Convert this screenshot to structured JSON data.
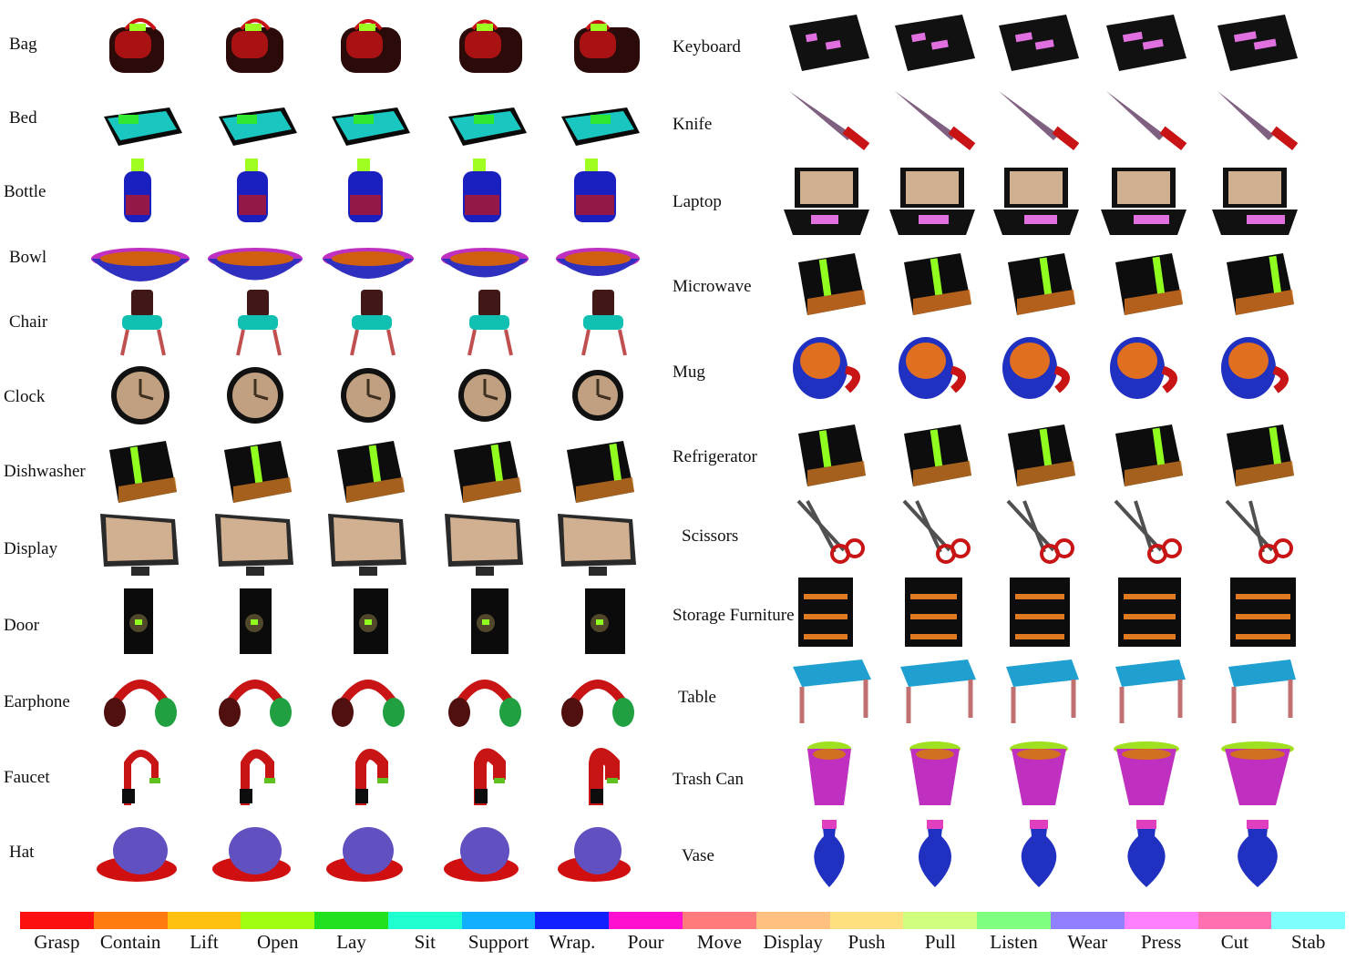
{
  "categories_left": [
    "Bag",
    "Bed",
    "Bottle",
    "Bowl",
    "Chair",
    "Clock",
    "Dishwasher",
    "Display",
    "Door",
    "Earphone",
    "Faucet",
    "Hat"
  ],
  "categories_right": [
    "Keyboard",
    "Knife",
    "Laptop",
    "Microwave",
    "Mug",
    "Refrigerator",
    "Scissors",
    "Storage Furniture",
    "Table",
    "Trash Can",
    "Vase"
  ],
  "legend": [
    {
      "label": "Grasp",
      "color": "#ff1010"
    },
    {
      "label": "Contain",
      "color": "#ff7a10"
    },
    {
      "label": "Lift",
      "color": "#ffc010"
    },
    {
      "label": "Open",
      "color": "#a0ff10"
    },
    {
      "label": "Lay",
      "color": "#20e020"
    },
    {
      "label": "Sit",
      "color": "#20ffd0"
    },
    {
      "label": "Support",
      "color": "#10b0ff"
    },
    {
      "label": "Wrap.",
      "color": "#1020ff"
    },
    {
      "label": "Pour",
      "color": "#ff10d0"
    },
    {
      "label": "Move",
      "color": "#ff7a7a"
    },
    {
      "label": "Display",
      "color": "#ffc080"
    },
    {
      "label": "Push",
      "color": "#ffe080"
    },
    {
      "label": "Pull",
      "color": "#d0ff80"
    },
    {
      "label": "Listen",
      "color": "#80ff80"
    },
    {
      "label": "Wear",
      "color": "#9080ff"
    },
    {
      "label": "Press",
      "color": "#ff80ff"
    },
    {
      "label": "Cut",
      "color": "#ff70b0"
    },
    {
      "label": "Stab",
      "color": "#80ffff"
    }
  ]
}
